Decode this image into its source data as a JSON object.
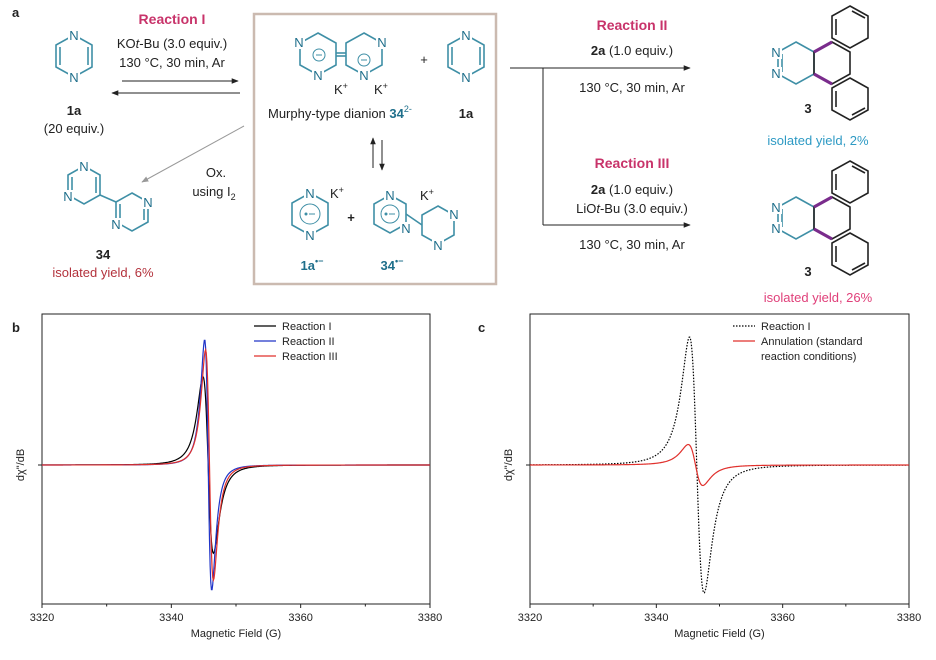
{
  "panel_a": {
    "label": "a",
    "reaction1": {
      "title": "Reaction I",
      "cond1_pre": "KO",
      "cond1_ital": "t",
      "cond1_post": "-Bu (3.0 equiv.)",
      "cond2": "130 °C, 30 min, Ar"
    },
    "left_compound": {
      "label": "1a",
      "sub": "(20 equiv.)"
    },
    "box": {
      "dianion_text": "Murphy-type dianion ",
      "dianion_num": "34",
      "dianion_sup": "2-",
      "k_plus": "K",
      "k_sup": "+",
      "plus": "+",
      "partner_label": "1a",
      "radical1_label": "1a",
      "radical1_sup": "•−",
      "radical2_label": "34",
      "radical2_sup": "•−"
    },
    "oxidation": {
      "line1": "Ox.",
      "line2": "using I",
      "line2_sub": "2"
    },
    "bottom_left": {
      "label": "34",
      "yield": "isolated yield, 6%"
    },
    "reaction2": {
      "title": "Reaction II",
      "reagent_bold": "2a",
      "reagent_rest": " (1.0 equiv.)",
      "cond": "130 °C, 30 min, Ar",
      "product": "3",
      "yield": "isolated yield, 2%"
    },
    "reaction3": {
      "title": "Reaction III",
      "reagent_bold": "2a",
      "reagent_rest": " (1.0 equiv.)",
      "base_pre": "LiO",
      "base_ital": "t",
      "base_post": "-Bu (3.0 equiv.)",
      "cond": "130 °C, 30 min, Ar",
      "product": "3",
      "yield": "isolated yield, 26%"
    },
    "atom_N": "N",
    "colors": {
      "ring": "#3f8fa6",
      "bond_highlight": "#7a2c8c",
      "reaction_title": "#c8336a",
      "yield_II": "#2e9ac4",
      "yield_III": "#e0407a",
      "yield_34": "#b3323c",
      "label_teal": "#1f6f8b"
    }
  },
  "chart_data": [
    {
      "panel": "b",
      "type": "line",
      "xlabel": "Magnetic Field (G)",
      "ylabel_main": "dχ",
      "ylabel_rest": "\"/dB",
      "xlim": [
        3320,
        3380
      ],
      "x_ticks": [
        "3320",
        "3340",
        "3360",
        "3380"
      ],
      "legend_position": "top-right",
      "grid": false,
      "series": [
        {
          "name": "Reaction I",
          "color": "#000000",
          "dash": "solid",
          "center": 3345.7,
          "halfwidth": 1.4,
          "amplitude": 0.69,
          "x": [
            3320,
            3335,
            3340,
            3342,
            3344,
            3344.5,
            3345.7,
            3347,
            3348,
            3350,
            3355,
            3365,
            3380
          ],
          "y": [
            0,
            0.05,
            0.15,
            0.3,
            0.55,
            0.69,
            0,
            -0.6,
            -0.55,
            -0.35,
            -0.12,
            -0.02,
            0
          ]
        },
        {
          "name": "Reaction II",
          "color": "#2034c8",
          "dash": "solid",
          "center": 3345.7,
          "halfwidth": 0.95,
          "amplitude": 0.98,
          "x": [
            3320,
            3335,
            3340,
            3343,
            3344.5,
            3344.8,
            3345.7,
            3346.6,
            3347,
            3348,
            3350,
            3355,
            3380
          ],
          "y": [
            0,
            0.02,
            0.05,
            0.2,
            0.7,
            0.98,
            0,
            -0.65,
            -0.6,
            -0.4,
            -0.12,
            -0.02,
            0
          ]
        },
        {
          "name": "Reaction III",
          "color": "#e0302c",
          "dash": "solid",
          "center": 3345.9,
          "halfwidth": 1.05,
          "amplitude": 0.9,
          "x": [
            3320,
            3335,
            3340,
            3343,
            3344.5,
            3344.9,
            3345.9,
            3346.9,
            3348,
            3350,
            3355,
            3380
          ],
          "y": [
            0,
            0.02,
            0.07,
            0.2,
            0.6,
            0.9,
            0,
            -0.72,
            -0.55,
            -0.3,
            -0.08,
            0
          ]
        }
      ]
    },
    {
      "panel": "c",
      "type": "line",
      "xlabel": "Magnetic Field (G)",
      "ylabel_main": "dχ",
      "ylabel_rest": "\"/dB",
      "xlim": [
        3320,
        3380
      ],
      "x_ticks": [
        "3320",
        "3340",
        "3360",
        "3380"
      ],
      "legend_position": "top-right",
      "grid": false,
      "series": [
        {
          "name": "Reaction I",
          "color": "#000000",
          "dash": "dotted",
          "center": 3346.4,
          "halfwidth": 2.0,
          "amplitude": 1.0,
          "x": [
            3320,
            3335,
            3340,
            3342,
            3344,
            3344.4,
            3346.4,
            3348.4,
            3350,
            3352,
            3360,
            3380
          ],
          "y": [
            0,
            0.05,
            0.2,
            0.4,
            0.9,
            1.0,
            0,
            -0.9,
            -0.75,
            -0.45,
            -0.08,
            0
          ]
        },
        {
          "name": "Annulation (standard reaction conditions)",
          "color": "#e0302c",
          "dash": "solid",
          "center": 3346.2,
          "halfwidth": 2.0,
          "amplitude": 0.16,
          "x": [
            3320,
            3335,
            3340,
            3344,
            3346.2,
            3348.2,
            3352,
            3360,
            3380
          ],
          "y": [
            0,
            0.02,
            0.06,
            0.16,
            0,
            -0.15,
            -0.09,
            -0.03,
            0
          ]
        }
      ],
      "legend_lines": [
        "Reaction I",
        "Annulation (standard",
        "reaction conditions)"
      ]
    }
  ],
  "panel_b_label": "b",
  "panel_c_label": "c"
}
